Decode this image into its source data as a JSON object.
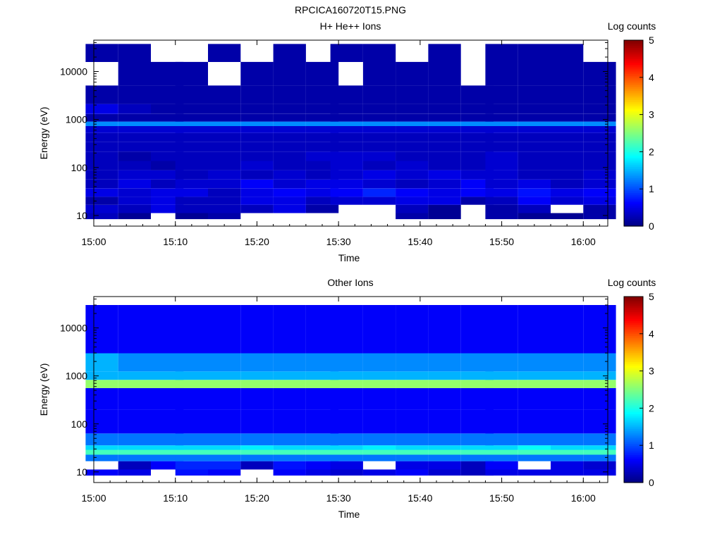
{
  "figure_title": "RPCICA160720T15.PNG",
  "chart_data": [
    {
      "type": "heatmap",
      "title": "H+ He++ Ions",
      "xlabel": "Time",
      "ylabel": "Energy (eV)",
      "x_ticks": [
        "15:00",
        "15:10",
        "15:20",
        "15:30",
        "15:40",
        "15:50",
        "16:00"
      ],
      "x_range": [
        "15:00",
        "16:03"
      ],
      "y_scale": "log",
      "y_ticks": [
        "10",
        "100",
        "1000",
        "10000"
      ],
      "y_range": [
        6,
        45000
      ],
      "z_label": "Log counts",
      "z_ticks": [
        "0",
        "1",
        "2",
        "3",
        "4",
        "5"
      ],
      "z_range": [
        0,
        5
      ],
      "time_bins": [
        "15:01",
        "15:05",
        "15:09",
        "15:12",
        "15:16",
        "15:20",
        "15:24",
        "15:28",
        "15:31",
        "15:35",
        "15:39",
        "15:43",
        "15:47",
        "15:50",
        "15:54",
        "15:58",
        "16:02"
      ],
      "energy_bands": [
        {
          "energy_eV": 9,
          "values": [
            0.3,
            0.1,
            0,
            0.1,
            0.2,
            0,
            0,
            0,
            0,
            0,
            0.2,
            0.1,
            0,
            0.2,
            0.1,
            0.1,
            0.2
          ]
        },
        {
          "energy_eV": 14,
          "values": [
            0.4,
            0.3,
            0.5,
            0.3,
            0.3,
            0.3,
            0.5,
            0.2,
            0,
            0,
            0.3,
            0.1,
            0,
            0.2,
            0.3,
            0,
            0.2
          ]
        },
        {
          "energy_eV": 20,
          "values": [
            0.2,
            0.4,
            0.5,
            0.3,
            0.3,
            0.5,
            0.5,
            0.3,
            0.4,
            0.4,
            0.5,
            0.5,
            0.2,
            0.3,
            0.6,
            0.4,
            0.5
          ]
        },
        {
          "energy_eV": 30,
          "values": [
            0.5,
            0.4,
            0.5,
            0.5,
            0.3,
            0.5,
            0.6,
            0.5,
            0.6,
            0.8,
            0.6,
            0.5,
            0.6,
            0.5,
            0.7,
            0.5,
            0.6
          ]
        },
        {
          "energy_eV": 45,
          "values": [
            0.3,
            0.5,
            0.3,
            0.4,
            0.4,
            0.6,
            0.4,
            0.5,
            0.5,
            0.4,
            0.3,
            0.4,
            0.6,
            0.4,
            0.5,
            0.3,
            0.4
          ]
        },
        {
          "energy_eV": 70,
          "values": [
            0.3,
            0.4,
            0.4,
            0.3,
            0.4,
            0.3,
            0.4,
            0.3,
            0.4,
            0.5,
            0.4,
            0.5,
            0.4,
            0.4,
            0.3,
            0.3,
            0.4
          ]
        },
        {
          "energy_eV": 110,
          "values": [
            0.3,
            0.3,
            0.2,
            0.3,
            0.3,
            0.4,
            0.3,
            0.3,
            0.4,
            0.3,
            0.4,
            0.3,
            0.3,
            0.4,
            0.3,
            0.3,
            0.3
          ]
        },
        {
          "energy_eV": 170,
          "values": [
            0.3,
            0.2,
            0.3,
            0.3,
            0.3,
            0.3,
            0.3,
            0.4,
            0.4,
            0.4,
            0.3,
            0.3,
            0.3,
            0.4,
            0.3,
            0.3,
            0.3
          ]
        },
        {
          "energy_eV": 270,
          "values": [
            0.3,
            0.3,
            0.3,
            0.3,
            0.3,
            0.3,
            0.3,
            0.3,
            0.3,
            0.3,
            0.3,
            0.3,
            0.3,
            0.3,
            0.3,
            0.3,
            0.3
          ]
        },
        {
          "energy_eV": 420,
          "values": [
            0.3,
            0.3,
            0.3,
            0.3,
            0.3,
            0.3,
            0.3,
            0.3,
            0.3,
            0.3,
            0.3,
            0.3,
            0.3,
            0.3,
            0.3,
            0.3,
            0.3
          ]
        },
        {
          "energy_eV": 650,
          "values": [
            0.4,
            0.4,
            0.4,
            0.4,
            0.4,
            0.4,
            0.4,
            0.4,
            0.4,
            0.4,
            0.4,
            0.4,
            0.4,
            0.4,
            0.4,
            0.4,
            0.4
          ]
        },
        {
          "energy_eV": 820,
          "values": [
            1.3,
            1.3,
            1.3,
            1.3,
            1.3,
            1.3,
            1.3,
            1.3,
            1.3,
            1.3,
            1.3,
            1.3,
            1.3,
            1.3,
            1.3,
            1.3,
            1.3
          ]
        },
        {
          "energy_eV": 1000,
          "values": [
            0.2,
            0.2,
            0.2,
            0.2,
            0.2,
            0.2,
            0.2,
            0.2,
            0.2,
            0.2,
            0.2,
            0.2,
            0.2,
            0.2,
            0.2,
            0.2,
            0.2
          ]
        },
        {
          "energy_eV": 1700,
          "values": [
            0.5,
            0.3,
            0.2,
            0.2,
            0.2,
            0.2,
            0.2,
            0.2,
            0.2,
            0.2,
            0.2,
            0.2,
            0.2,
            0.2,
            0.2,
            0.2,
            0.2
          ]
        },
        {
          "energy_eV": 2600,
          "values": [
            0.2,
            0.2,
            0.2,
            0.2,
            0.2,
            0.2,
            0.2,
            0.2,
            0.2,
            0.2,
            0.2,
            0.2,
            0.2,
            0.2,
            0.2,
            0.2,
            0.2
          ]
        },
        {
          "energy_eV": 10000,
          "values": [
            0,
            0.2,
            0.2,
            0.2,
            0,
            0.2,
            0.2,
            0.2,
            0,
            0.2,
            0.2,
            0.2,
            0,
            0.2,
            0.2,
            0.2,
            0.2
          ]
        },
        {
          "energy_eV": 25000,
          "values": [
            0.2,
            0.2,
            0,
            0,
            0.2,
            0,
            0.2,
            0,
            0.2,
            0.2,
            0,
            0.2,
            0,
            0.2,
            0.2,
            0.2,
            0
          ]
        }
      ]
    },
    {
      "type": "heatmap",
      "title": "Other Ions",
      "xlabel": "Time",
      "ylabel": "Energy (eV)",
      "x_ticks": [
        "15:00",
        "15:10",
        "15:20",
        "15:30",
        "15:40",
        "15:50",
        "16:00"
      ],
      "x_range": [
        "15:00",
        "16:03"
      ],
      "y_scale": "log",
      "y_ticks": [
        "10",
        "100",
        "1000",
        "10000"
      ],
      "y_range": [
        6,
        45000
      ],
      "z_label": "Log counts",
      "z_ticks": [
        "0",
        "1",
        "2",
        "3",
        "4",
        "5"
      ],
      "z_range": [
        0,
        5
      ],
      "time_bins": [
        "15:01",
        "15:05",
        "15:09",
        "15:12",
        "15:16",
        "15:20",
        "15:24",
        "15:28",
        "15:31",
        "15:35",
        "15:39",
        "15:43",
        "15:47",
        "15:50",
        "15:54",
        "15:58",
        "16:02"
      ],
      "energy_bands": [
        {
          "energy_eV": 9,
          "values": [
            0.6,
            0.5,
            0,
            0.7,
            0.6,
            0,
            0.6,
            0.5,
            0.4,
            0.5,
            0.6,
            0.4,
            0.3,
            0.5,
            0.5,
            0.5,
            0.5
          ]
        },
        {
          "energy_eV": 14,
          "values": [
            0,
            0.3,
            0.6,
            0.8,
            0.8,
            0.3,
            0.7,
            0.6,
            0.5,
            0,
            0.5,
            0.5,
            0.3,
            0.6,
            0,
            0.5,
            0.4
          ]
        },
        {
          "energy_eV": 20,
          "values": [
            1.2,
            1.2,
            1.2,
            1.2,
            1.2,
            1.2,
            1.2,
            1.2,
            1.2,
            1.2,
            1.2,
            1.2,
            1.2,
            1.2,
            1.2,
            1.2,
            1.2
          ]
        },
        {
          "energy_eV": 26,
          "values": [
            2.2,
            2.2,
            2.2,
            2.2,
            2.2,
            2.2,
            2.2,
            2.2,
            2.2,
            2.2,
            2.2,
            2.2,
            2.2,
            2.2,
            2.2,
            2.2,
            2.2
          ]
        },
        {
          "energy_eV": 32,
          "values": [
            1.7,
            1.7,
            1.7,
            1.7,
            1.7,
            1.8,
            1.7,
            1.7,
            1.7,
            1.8,
            1.7,
            1.7,
            1.7,
            1.7,
            1.9,
            1.7,
            1.7
          ]
        },
        {
          "energy_eV": 40,
          "values": [
            1.2,
            1.2,
            1.2,
            1.2,
            1.2,
            1.2,
            1.2,
            1.2,
            1.2,
            1.2,
            1.2,
            1.2,
            1.2,
            1.2,
            1.2,
            1.2,
            1.2
          ]
        },
        {
          "energy_eV": 100,
          "values": [
            0.6,
            0.6,
            0.6,
            0.6,
            0.6,
            0.6,
            0.6,
            0.6,
            0.6,
            0.6,
            0.6,
            0.6,
            0.6,
            0.6,
            0.6,
            0.6,
            0.6
          ]
        },
        {
          "energy_eV": 400,
          "values": [
            0.6,
            0.6,
            0.6,
            0.6,
            0.6,
            0.6,
            0.6,
            0.6,
            0.6,
            0.6,
            0.6,
            0.6,
            0.6,
            0.6,
            0.6,
            0.6,
            0.6
          ]
        },
        {
          "energy_eV": 780,
          "values": [
            2.6,
            2.6,
            2.6,
            2.6,
            2.6,
            2.6,
            2.6,
            2.6,
            2.6,
            2.6,
            2.6,
            2.6,
            2.6,
            2.6,
            2.6,
            2.6,
            2.6
          ]
        },
        {
          "energy_eV": 880,
          "values": [
            1.5,
            1.5,
            1.5,
            1.5,
            1.5,
            1.5,
            1.5,
            1.5,
            1.5,
            1.5,
            1.5,
            1.5,
            1.5,
            1.5,
            1.5,
            1.5,
            1.5
          ]
        },
        {
          "energy_eV": 1750,
          "values": [
            1.5,
            1.3,
            1.3,
            1.3,
            1.3,
            1.3,
            1.3,
            1.3,
            1.3,
            1.3,
            1.3,
            1.3,
            1.3,
            1.3,
            1.3,
            1.3,
            1.3
          ]
        },
        {
          "energy_eV": 5000,
          "values": [
            0.6,
            0.6,
            0.6,
            0.6,
            0.6,
            0.6,
            0.6,
            0.6,
            0.6,
            0.6,
            0.6,
            0.6,
            0.6,
            0.6,
            0.6,
            0.6,
            0.6
          ]
        },
        {
          "energy_eV": 20000,
          "values": [
            0.6,
            0.6,
            0.6,
            0.6,
            0.6,
            0.6,
            0.6,
            0.6,
            0.6,
            0.6,
            0.6,
            0.6,
            0.6,
            0.6,
            0.6,
            0.6,
            0.6
          ]
        }
      ]
    }
  ]
}
